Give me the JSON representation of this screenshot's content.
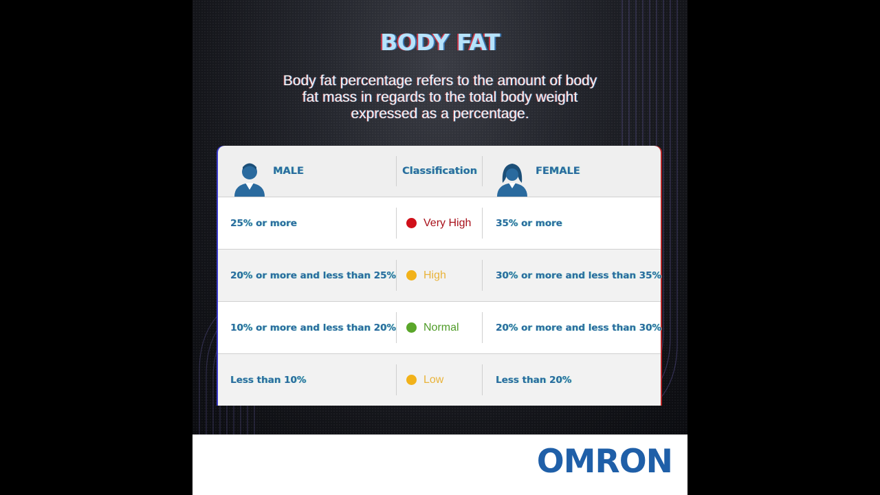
{
  "title": "BODY FAT",
  "subtitle": "Body fat percentage refers to the amount of body fat mass in regards to the total body weight expressed as a percentage.",
  "table": {
    "header": {
      "male": "MALE",
      "classification": "Classification",
      "female": "FEMALE"
    },
    "rows": [
      {
        "male": "25% or more",
        "classification": "Very High",
        "female": "35% or more",
        "color": "#d0101a",
        "text_color": "#a8101a"
      },
      {
        "male": "20% or more and less than 25%",
        "classification": "High",
        "female": "30% or more and less than 35%",
        "color": "#f2b21a",
        "text_color": "#e9b33a"
      },
      {
        "male": "10% or more and less than 20%",
        "classification": "Normal",
        "female": "20% or more and less than 30%",
        "color": "#5aa62a",
        "text_color": "#4f9b28"
      },
      {
        "male": "Less than 10%",
        "classification": "Low",
        "female": "Less than 20%",
        "color": "#f2b21a",
        "text_color": "#e9b33a"
      }
    ]
  },
  "brand": {
    "logo_text": "OMRON",
    "color": "#1f5fa8"
  },
  "icons": {
    "male": "male-avatar-icon",
    "female": "female-avatar-icon",
    "status": "status-dot-icon"
  }
}
